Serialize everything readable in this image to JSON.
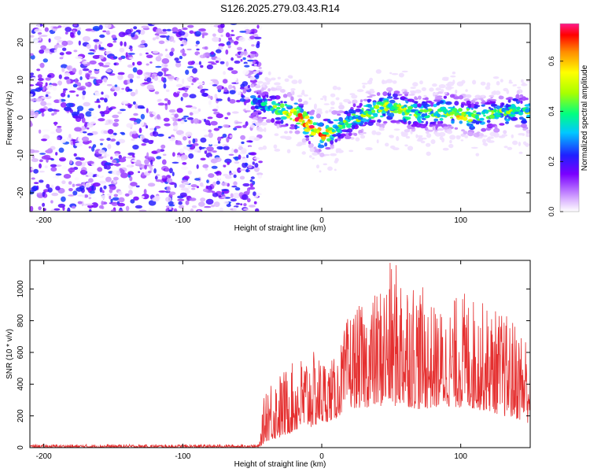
{
  "title": "S126.2025.279.03.43.R14",
  "chart_data": [
    {
      "type": "heatmap",
      "name": "spectrogram",
      "xlabel": "Height of straight line (km)",
      "ylabel": "Frequency (Hz)",
      "xlim": [
        -210,
        150
      ],
      "ylim": [
        -25,
        25
      ],
      "xticks": [
        -200,
        -100,
        0,
        100
      ],
      "yticks": [
        -20,
        -10,
        0,
        10,
        20
      ],
      "noise_region": {
        "x_from": -210,
        "x_to": -50,
        "value_range": [
          0.0,
          0.25
        ]
      },
      "signal_track": {
        "x": [
          -50,
          -40,
          -30,
          -20,
          -10,
          0,
          10,
          20,
          30,
          40,
          50,
          60,
          70,
          80,
          90,
          100,
          110,
          120,
          130,
          140,
          150
        ],
        "frequency": [
          4,
          3,
          2,
          1,
          -2,
          -5,
          -3,
          -1,
          1,
          2,
          3,
          2,
          1,
          1,
          2,
          1,
          0,
          1,
          1,
          2,
          1
        ],
        "peak_amplitude": [
          0.35,
          0.4,
          0.5,
          0.7,
          0.75,
          0.7,
          0.5,
          0.45,
          0.5,
          0.5,
          0.55,
          0.55,
          0.45,
          0.45,
          0.55,
          0.6,
          0.5,
          0.45,
          0.5,
          0.45,
          0.5
        ]
      },
      "colorbar": {
        "label": "Normalized spectral amplitude",
        "range": [
          0.0,
          0.75
        ],
        "ticks": [
          "0.0",
          "0.2",
          "0.4",
          "0.6"
        ],
        "tick_values": [
          0.0,
          0.2,
          0.4,
          0.6
        ]
      }
    },
    {
      "type": "line",
      "name": "snr",
      "xlabel": "Height of straight line (km)",
      "ylabel": "SNR (10 * v/v)",
      "xlim": [
        -210,
        150
      ],
      "ylim": [
        0,
        1180
      ],
      "xticks": [
        -200,
        -100,
        0,
        100
      ],
      "yticks": [
        0,
        200,
        400,
        600,
        800,
        1000
      ],
      "color": "#e53030",
      "envelope": {
        "x": [
          -210,
          -60,
          -45,
          -40,
          -30,
          -20,
          -10,
          0,
          10,
          15,
          20,
          30,
          40,
          50,
          60,
          70,
          80,
          90,
          100,
          110,
          120,
          130,
          140,
          150
        ],
        "low": [
          0,
          0,
          0,
          40,
          60,
          100,
          120,
          150,
          180,
          220,
          250,
          250,
          260,
          260,
          260,
          240,
          250,
          260,
          250,
          240,
          230,
          200,
          180,
          150
        ],
        "high": [
          20,
          20,
          20,
          450,
          480,
          540,
          620,
          580,
          560,
          700,
          880,
          900,
          1000,
          1180,
          1160,
          1050,
          900,
          880,
          1000,
          950,
          900,
          860,
          800,
          730
        ]
      }
    }
  ]
}
